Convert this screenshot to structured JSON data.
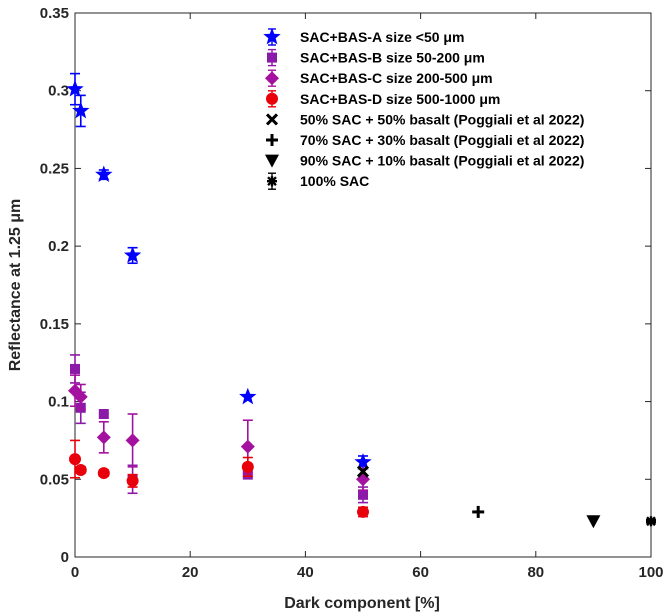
{
  "chart_data": {
    "type": "scatter",
    "title": "",
    "xlabel": "Dark component [%]",
    "ylabel": "Reflectance at 1.25 μm",
    "xlim": [
      0,
      100
    ],
    "ylim": [
      0,
      0.35
    ],
    "xticks": [
      "0",
      "20",
      "40",
      "60",
      "80",
      "100"
    ],
    "yticks": [
      "0",
      "0.05",
      "0.1",
      "0.15",
      "0.2",
      "0.25",
      "0.3",
      "0.35"
    ],
    "grid": false,
    "legend_position": "top-right",
    "series": [
      {
        "name": "SAC+BAS-A size <50 μm",
        "marker": "star",
        "color": "#0000ff",
        "points": [
          {
            "x": 0,
            "y": 0.301,
            "err": 0.01
          },
          {
            "x": 1,
            "y": 0.287,
            "err": 0.01
          },
          {
            "x": 5,
            "y": 0.246,
            "err": 0.003
          },
          {
            "x": 10,
            "y": 0.194,
            "err": 0.005
          },
          {
            "x": 30,
            "y": 0.103,
            "err": 0
          },
          {
            "x": 50,
            "y": 0.061,
            "err": 0.004
          }
        ]
      },
      {
        "name": "SAC+BAS-B size 50-200 μm",
        "marker": "square",
        "color": "#8b1aa8",
        "points": [
          {
            "x": 0,
            "y": 0.121,
            "err": 0.009
          },
          {
            "x": 1,
            "y": 0.096,
            "err": 0.01
          },
          {
            "x": 5,
            "y": 0.092,
            "err": 0
          },
          {
            "x": 10,
            "y": 0.05,
            "err": 0.009
          },
          {
            "x": 30,
            "y": 0.053,
            "err": 0
          },
          {
            "x": 50,
            "y": 0.04,
            "err": 0.005
          }
        ]
      },
      {
        "name": "SAC+BAS-C size 200-500 μm",
        "marker": "diamond",
        "color": "#a5119f",
        "points": [
          {
            "x": 0,
            "y": 0.107,
            "err": 0.01
          },
          {
            "x": 1,
            "y": 0.103,
            "err": 0.008
          },
          {
            "x": 5,
            "y": 0.077,
            "err": 0.01
          },
          {
            "x": 10,
            "y": 0.075,
            "err": 0.017
          },
          {
            "x": 30,
            "y": 0.071,
            "err": 0.017
          },
          {
            "x": 50,
            "y": 0.05,
            "err": 0.007
          }
        ]
      },
      {
        "name": "SAC+BAS-D size 500-1000 μm",
        "marker": "circle",
        "color": "#e8000b",
        "points": [
          {
            "x": 0,
            "y": 0.063,
            "err": 0.012
          },
          {
            "x": 1,
            "y": 0.056,
            "err": 0.002
          },
          {
            "x": 5,
            "y": 0.054,
            "err": 0.002
          },
          {
            "x": 10,
            "y": 0.049,
            "err": 0.004
          },
          {
            "x": 30,
            "y": 0.058,
            "err": 0.006
          },
          {
            "x": 50,
            "y": 0.029,
            "err": 0.003
          }
        ]
      },
      {
        "name": "50% SAC + 50% basalt (Poggiali et al 2022)",
        "marker": "x",
        "color": "#000000",
        "points": [
          {
            "x": 50,
            "y": 0.055,
            "err": 0
          }
        ]
      },
      {
        "name": "70% SAC + 30% basalt (Poggiali et al 2022)",
        "marker": "plus",
        "color": "#000000",
        "points": [
          {
            "x": 70,
            "y": 0.029,
            "err": 0
          }
        ]
      },
      {
        "name": "90% SAC + 10% basalt (Poggiali et al 2022)",
        "marker": "triangle-down",
        "color": "#000000",
        "points": [
          {
            "x": 90,
            "y": 0.023,
            "err": 0
          }
        ]
      },
      {
        "name": "100% SAC",
        "marker": "asterisk",
        "color": "#000000",
        "points": [
          {
            "x": 100,
            "y": 0.023,
            "err": 0.001
          }
        ]
      }
    ]
  }
}
